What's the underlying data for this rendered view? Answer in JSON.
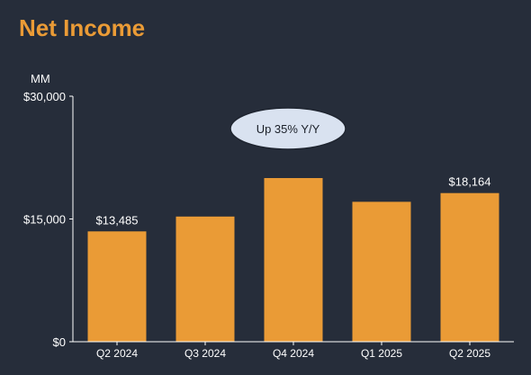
{
  "title": "Net Income",
  "colors": {
    "background": "#262d3a",
    "title": "#ea9b36",
    "bar": "#ea9b36",
    "axis": "#ffffff",
    "callout_fill": "#d9e2f0",
    "callout_stroke": "#1f2530"
  },
  "chart_data": {
    "type": "bar",
    "unit_label": "MM",
    "categories": [
      "Q2 2024",
      "Q3 2024",
      "Q4 2024",
      "Q1 2025",
      "Q2 2025"
    ],
    "values": [
      13485,
      15300,
      20000,
      17100,
      18164
    ],
    "ylim": [
      0,
      30000
    ],
    "yticks": [
      {
        "value": 0,
        "label": "$0"
      },
      {
        "value": 15000,
        "label": "$15,000"
      },
      {
        "value": 30000,
        "label": "$30,000"
      }
    ],
    "data_labels": [
      {
        "index": 0,
        "text": "$13,485"
      },
      {
        "index": 4,
        "text": "$18,164"
      }
    ],
    "callout": "Up 35% Y/Y",
    "grid": false,
    "legend": "none"
  }
}
